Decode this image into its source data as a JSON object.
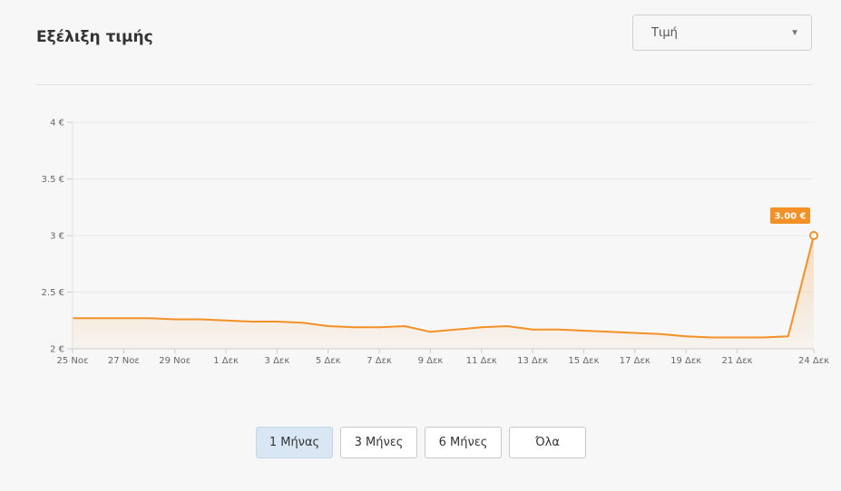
{
  "header": {
    "title": "Εξέλιξη τιμής",
    "select_value": "Τιμή",
    "select_icon": "chevron-down-icon"
  },
  "chart_data": {
    "type": "area",
    "y_ticks": [
      {
        "value": 2,
        "label": "2 €"
      },
      {
        "value": 2.5,
        "label": "2.5 €"
      },
      {
        "value": 3,
        "label": "3 €"
      },
      {
        "value": 3.5,
        "label": "3.5 €"
      },
      {
        "value": 4,
        "label": "4 €"
      }
    ],
    "ylim": [
      2,
      4
    ],
    "x_ticks": [
      "25 Νοε",
      "27 Νοε",
      "29 Νοε",
      "1 Δεκ",
      "3 Δεκ",
      "5 Δεκ",
      "7 Δεκ",
      "9 Δεκ",
      "11 Δεκ",
      "13 Δεκ",
      "15 Δεκ",
      "17 Δεκ",
      "19 Δεκ",
      "21 Δεκ",
      "24 Δεκ"
    ],
    "x": [
      "25 Νοε",
      "26 Νοε",
      "27 Νοε",
      "28 Νοε",
      "29 Νοε",
      "30 Νοε",
      "1 Δεκ",
      "2 Δεκ",
      "3 Δεκ",
      "4 Δεκ",
      "5 Δεκ",
      "6 Δεκ",
      "7 Δεκ",
      "8 Δεκ",
      "9 Δεκ",
      "10 Δεκ",
      "11 Δεκ",
      "12 Δεκ",
      "13 Δεκ",
      "14 Δεκ",
      "15 Δεκ",
      "16 Δεκ",
      "17 Δεκ",
      "18 Δεκ",
      "19 Δεκ",
      "20 Δεκ",
      "21 Δεκ",
      "22 Δεκ",
      "23 Δεκ",
      "24 Δεκ"
    ],
    "values": [
      2.27,
      2.27,
      2.27,
      2.27,
      2.26,
      2.26,
      2.25,
      2.24,
      2.24,
      2.23,
      2.2,
      2.19,
      2.19,
      2.2,
      2.15,
      2.17,
      2.19,
      2.2,
      2.17,
      2.17,
      2.16,
      2.15,
      2.14,
      2.13,
      2.11,
      2.1,
      2.1,
      2.1,
      2.11,
      3.0
    ],
    "tooltip": "3.00 €",
    "line_color": "#f39127",
    "tooltip_color": "#f39127",
    "grid": true
  },
  "ranges": [
    {
      "label": "1 Μήνας",
      "active": true
    },
    {
      "label": "3 Μήνες",
      "active": false
    },
    {
      "label": "6 Μήνες",
      "active": false
    },
    {
      "label": "Όλα",
      "active": false
    }
  ]
}
